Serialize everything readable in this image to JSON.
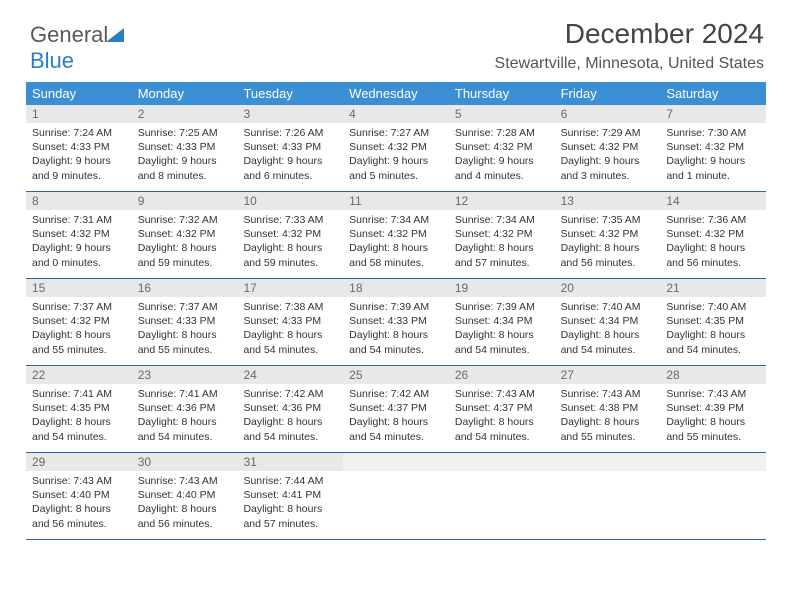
{
  "logo": {
    "text1": "General",
    "text2": "Blue"
  },
  "title": "December 2024",
  "subtitle": "Stewartville, Minnesota, United States",
  "colors": {
    "header_bg": "#3b8fd4",
    "header_text": "#ffffff",
    "daynum_bg": "#e8e8e8",
    "daynum_text": "#6a6a6a",
    "divider": "#2668a2",
    "logo_gray": "#5a5a5a",
    "logo_blue": "#2b7fc2"
  },
  "day_headers": [
    "Sunday",
    "Monday",
    "Tuesday",
    "Wednesday",
    "Thursday",
    "Friday",
    "Saturday"
  ],
  "weeks": [
    [
      {
        "n": "1",
        "sunrise": "Sunrise: 7:24 AM",
        "sunset": "Sunset: 4:33 PM",
        "day1": "Daylight: 9 hours",
        "day2": "and 9 minutes."
      },
      {
        "n": "2",
        "sunrise": "Sunrise: 7:25 AM",
        "sunset": "Sunset: 4:33 PM",
        "day1": "Daylight: 9 hours",
        "day2": "and 8 minutes."
      },
      {
        "n": "3",
        "sunrise": "Sunrise: 7:26 AM",
        "sunset": "Sunset: 4:33 PM",
        "day1": "Daylight: 9 hours",
        "day2": "and 6 minutes."
      },
      {
        "n": "4",
        "sunrise": "Sunrise: 7:27 AM",
        "sunset": "Sunset: 4:32 PM",
        "day1": "Daylight: 9 hours",
        "day2": "and 5 minutes."
      },
      {
        "n": "5",
        "sunrise": "Sunrise: 7:28 AM",
        "sunset": "Sunset: 4:32 PM",
        "day1": "Daylight: 9 hours",
        "day2": "and 4 minutes."
      },
      {
        "n": "6",
        "sunrise": "Sunrise: 7:29 AM",
        "sunset": "Sunset: 4:32 PM",
        "day1": "Daylight: 9 hours",
        "day2": "and 3 minutes."
      },
      {
        "n": "7",
        "sunrise": "Sunrise: 7:30 AM",
        "sunset": "Sunset: 4:32 PM",
        "day1": "Daylight: 9 hours",
        "day2": "and 1 minute."
      }
    ],
    [
      {
        "n": "8",
        "sunrise": "Sunrise: 7:31 AM",
        "sunset": "Sunset: 4:32 PM",
        "day1": "Daylight: 9 hours",
        "day2": "and 0 minutes."
      },
      {
        "n": "9",
        "sunrise": "Sunrise: 7:32 AM",
        "sunset": "Sunset: 4:32 PM",
        "day1": "Daylight: 8 hours",
        "day2": "and 59 minutes."
      },
      {
        "n": "10",
        "sunrise": "Sunrise: 7:33 AM",
        "sunset": "Sunset: 4:32 PM",
        "day1": "Daylight: 8 hours",
        "day2": "and 59 minutes."
      },
      {
        "n": "11",
        "sunrise": "Sunrise: 7:34 AM",
        "sunset": "Sunset: 4:32 PM",
        "day1": "Daylight: 8 hours",
        "day2": "and 58 minutes."
      },
      {
        "n": "12",
        "sunrise": "Sunrise: 7:34 AM",
        "sunset": "Sunset: 4:32 PM",
        "day1": "Daylight: 8 hours",
        "day2": "and 57 minutes."
      },
      {
        "n": "13",
        "sunrise": "Sunrise: 7:35 AM",
        "sunset": "Sunset: 4:32 PM",
        "day1": "Daylight: 8 hours",
        "day2": "and 56 minutes."
      },
      {
        "n": "14",
        "sunrise": "Sunrise: 7:36 AM",
        "sunset": "Sunset: 4:32 PM",
        "day1": "Daylight: 8 hours",
        "day2": "and 56 minutes."
      }
    ],
    [
      {
        "n": "15",
        "sunrise": "Sunrise: 7:37 AM",
        "sunset": "Sunset: 4:32 PM",
        "day1": "Daylight: 8 hours",
        "day2": "and 55 minutes."
      },
      {
        "n": "16",
        "sunrise": "Sunrise: 7:37 AM",
        "sunset": "Sunset: 4:33 PM",
        "day1": "Daylight: 8 hours",
        "day2": "and 55 minutes."
      },
      {
        "n": "17",
        "sunrise": "Sunrise: 7:38 AM",
        "sunset": "Sunset: 4:33 PM",
        "day1": "Daylight: 8 hours",
        "day2": "and 54 minutes."
      },
      {
        "n": "18",
        "sunrise": "Sunrise: 7:39 AM",
        "sunset": "Sunset: 4:33 PM",
        "day1": "Daylight: 8 hours",
        "day2": "and 54 minutes."
      },
      {
        "n": "19",
        "sunrise": "Sunrise: 7:39 AM",
        "sunset": "Sunset: 4:34 PM",
        "day1": "Daylight: 8 hours",
        "day2": "and 54 minutes."
      },
      {
        "n": "20",
        "sunrise": "Sunrise: 7:40 AM",
        "sunset": "Sunset: 4:34 PM",
        "day1": "Daylight: 8 hours",
        "day2": "and 54 minutes."
      },
      {
        "n": "21",
        "sunrise": "Sunrise: 7:40 AM",
        "sunset": "Sunset: 4:35 PM",
        "day1": "Daylight: 8 hours",
        "day2": "and 54 minutes."
      }
    ],
    [
      {
        "n": "22",
        "sunrise": "Sunrise: 7:41 AM",
        "sunset": "Sunset: 4:35 PM",
        "day1": "Daylight: 8 hours",
        "day2": "and 54 minutes."
      },
      {
        "n": "23",
        "sunrise": "Sunrise: 7:41 AM",
        "sunset": "Sunset: 4:36 PM",
        "day1": "Daylight: 8 hours",
        "day2": "and 54 minutes."
      },
      {
        "n": "24",
        "sunrise": "Sunrise: 7:42 AM",
        "sunset": "Sunset: 4:36 PM",
        "day1": "Daylight: 8 hours",
        "day2": "and 54 minutes."
      },
      {
        "n": "25",
        "sunrise": "Sunrise: 7:42 AM",
        "sunset": "Sunset: 4:37 PM",
        "day1": "Daylight: 8 hours",
        "day2": "and 54 minutes."
      },
      {
        "n": "26",
        "sunrise": "Sunrise: 7:43 AM",
        "sunset": "Sunset: 4:37 PM",
        "day1": "Daylight: 8 hours",
        "day2": "and 54 minutes."
      },
      {
        "n": "27",
        "sunrise": "Sunrise: 7:43 AM",
        "sunset": "Sunset: 4:38 PM",
        "day1": "Daylight: 8 hours",
        "day2": "and 55 minutes."
      },
      {
        "n": "28",
        "sunrise": "Sunrise: 7:43 AM",
        "sunset": "Sunset: 4:39 PM",
        "day1": "Daylight: 8 hours",
        "day2": "and 55 minutes."
      }
    ],
    [
      {
        "n": "29",
        "sunrise": "Sunrise: 7:43 AM",
        "sunset": "Sunset: 4:40 PM",
        "day1": "Daylight: 8 hours",
        "day2": "and 56 minutes."
      },
      {
        "n": "30",
        "sunrise": "Sunrise: 7:43 AM",
        "sunset": "Sunset: 4:40 PM",
        "day1": "Daylight: 8 hours",
        "day2": "and 56 minutes."
      },
      {
        "n": "31",
        "sunrise": "Sunrise: 7:44 AM",
        "sunset": "Sunset: 4:41 PM",
        "day1": "Daylight: 8 hours",
        "day2": "and 57 minutes."
      },
      {
        "empty": true
      },
      {
        "empty": true
      },
      {
        "empty": true
      },
      {
        "empty": true
      }
    ]
  ]
}
